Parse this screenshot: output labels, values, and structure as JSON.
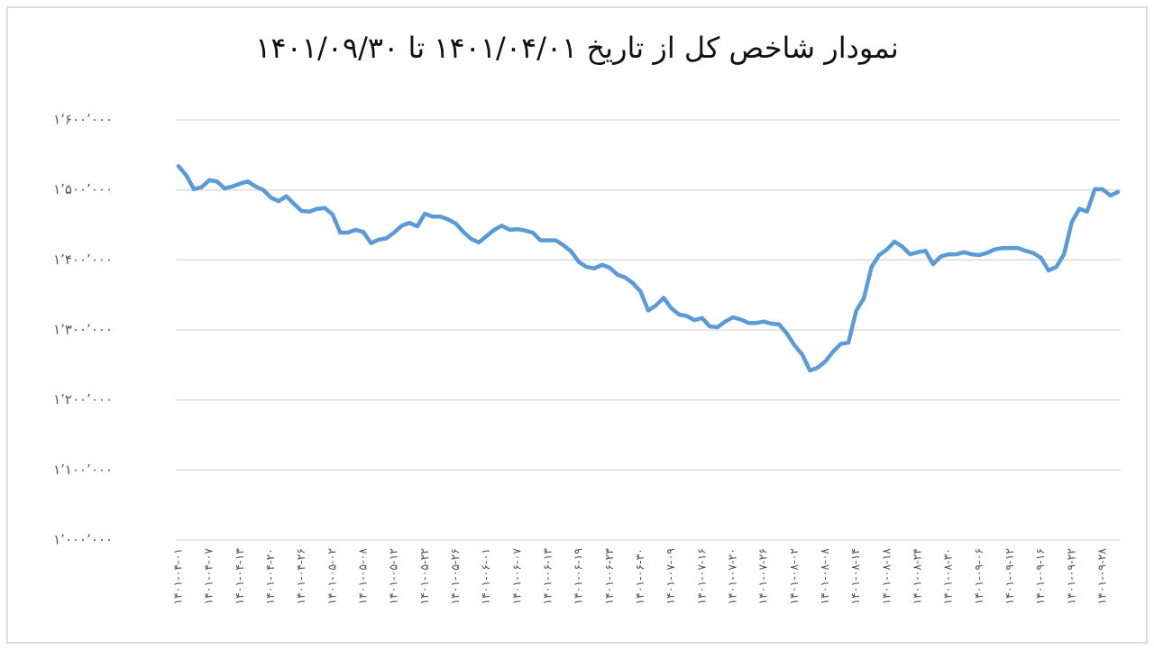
{
  "chart_data": {
    "type": "line",
    "title": "نمودار شاخص کل از تاریخ ۱۴۰۱/۰۴/۰۱ تا ۱۴۰۱/۰۹/۳۰",
    "categories": [
      "۱۴۰۱-۰۴-۰۱",
      null,
      null,
      null,
      "۱۴۰۱-۰۴-۰۷",
      null,
      null,
      null,
      "۱۴۰۱-۰۴-۱۳",
      null,
      null,
      null,
      "۱۴۰۱-۰۴-۲۰",
      null,
      null,
      null,
      "۱۴۰۱-۰۴-۲۶",
      null,
      null,
      null,
      "۱۴۰۱-۰۵-۰۲",
      null,
      null,
      null,
      "۱۴۰۱-۰۵-۰۸",
      null,
      null,
      null,
      "۱۴۰۱-۰۵-۱۲",
      null,
      null,
      null,
      "۱۴۰۱-۰۵-۲۲",
      null,
      null,
      null,
      "۱۴۰۱-۰۵-۲۶",
      null,
      null,
      null,
      "۱۴۰۱-۰۶-۰۱",
      null,
      null,
      null,
      "۱۴۰۱-۰۶-۰۷",
      null,
      null,
      null,
      "۱۴۰۱-۰۶-۱۳",
      null,
      null,
      null,
      "۱۴۰۱-۰۶-۱۹",
      null,
      null,
      null,
      "۱۴۰۱-۰۶-۲۳",
      null,
      null,
      null,
      "۱۴۰۱-۰۶-۳۰",
      null,
      null,
      null,
      "۱۴۰۱-۰۷-۰۹",
      null,
      null,
      null,
      "۱۴۰۱-۰۷-۱۶",
      null,
      null,
      null,
      "۱۴۰۱-۰۷-۲۰",
      null,
      null,
      null,
      "۱۴۰۱-۰۷-۲۶",
      null,
      null,
      null,
      "۱۴۰۱-۰۸-۰۲",
      null,
      null,
      null,
      "۱۴۰۱-۰۸-۰۸",
      null,
      null,
      null,
      "۱۴۰۱-۰۸-۱۴",
      null,
      null,
      null,
      "۱۴۰۱-۰۸-۱۸",
      null,
      null,
      null,
      "۱۴۰۱-۰۸-۲۴",
      null,
      null,
      null,
      "۱۴۰۱-۰۸-۳۰",
      null,
      null,
      null,
      "۱۴۰۱-۰۹-۰۶",
      null,
      null,
      null,
      "۱۴۰۱-۰۹-۱۲",
      null,
      null,
      null,
      "۱۴۰۱-۰۹-۱۶",
      null,
      null,
      null,
      "۱۴۰۱-۰۹-۲۲",
      null,
      null,
      null,
      "۱۴۰۱-۰۹-۲۸",
      null,
      null
    ],
    "values": [
      1534000,
      1521000,
      1501000,
      1504000,
      1514000,
      1512000,
      1502000,
      1505000,
      1509000,
      1512000,
      1505000,
      1500000,
      1489000,
      1484000,
      1491000,
      1480000,
      1470000,
      1469000,
      1473000,
      1474000,
      1465000,
      1439000,
      1439000,
      1443000,
      1440000,
      1424000,
      1429000,
      1431000,
      1439000,
      1449000,
      1453000,
      1448000,
      1466000,
      1462000,
      1462000,
      1458000,
      1452000,
      1440000,
      1430000,
      1425000,
      1434000,
      1443000,
      1449000,
      1443000,
      1444000,
      1442000,
      1439000,
      1428000,
      1428000,
      1428000,
      1421000,
      1412000,
      1397000,
      1390000,
      1388000,
      1393000,
      1389000,
      1379000,
      1375000,
      1367000,
      1355000,
      1328000,
      1335000,
      1346000,
      1331000,
      1322000,
      1320000,
      1314000,
      1317000,
      1305000,
      1304000,
      1312000,
      1318000,
      1315000,
      1310000,
      1310000,
      1312000,
      1309000,
      1308000,
      1295000,
      1278000,
      1265000,
      1242000,
      1246000,
      1255000,
      1269000,
      1280000,
      1282000,
      1327000,
      1345000,
      1390000,
      1407000,
      1415000,
      1426000,
      1419000,
      1408000,
      1411000,
      1413000,
      1394000,
      1405000,
      1408000,
      1408000,
      1411000,
      1408000,
      1407000,
      1410000,
      1415000,
      1417000,
      1417000,
      1417000,
      1413000,
      1410000,
      1403000,
      1385000,
      1390000,
      1408000,
      1454000,
      1473000,
      1469000,
      1501000,
      1501000,
      1492000,
      1497000
    ],
    "color": "#5b9bd5",
    "ylim": [
      1000000,
      1600000
    ],
    "yticks": [
      {
        "value": 1000000,
        "label": "۱٬۰۰۰٬۰۰۰"
      },
      {
        "value": 1100000,
        "label": "۱٬۱۰۰٬۰۰۰"
      },
      {
        "value": 1200000,
        "label": "۱٬۲۰۰٬۰۰۰"
      },
      {
        "value": 1300000,
        "label": "۱٬۳۰۰٬۰۰۰"
      },
      {
        "value": 1400000,
        "label": "۱٬۴۰۰٬۰۰۰"
      },
      {
        "value": 1500000,
        "label": "۱٬۵۰۰٬۰۰۰"
      },
      {
        "value": 1600000,
        "label": "۱٬۶۰۰٬۰۰۰"
      }
    ],
    "grid": true
  }
}
